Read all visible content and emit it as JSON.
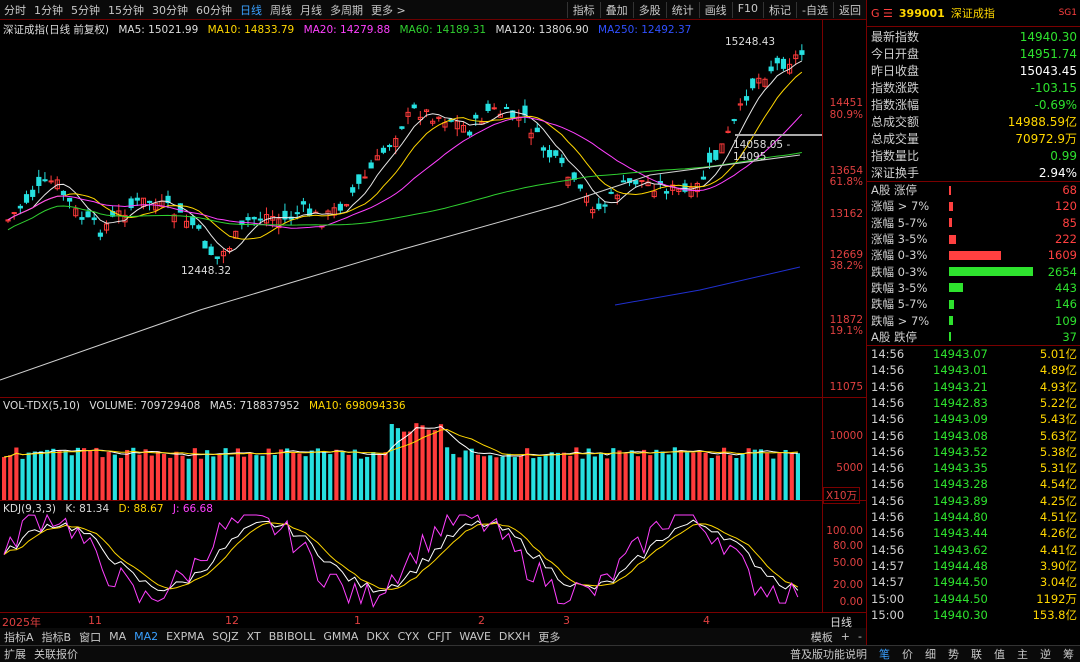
{
  "toolbar": {
    "periods": [
      "分时",
      "1分钟",
      "5分钟",
      "15分钟",
      "30分钟",
      "60分钟",
      "日线",
      "周线",
      "月线",
      "多周期",
      "更多 >"
    ],
    "active_period": "日线",
    "right": [
      "指标",
      "叠加",
      "多股",
      "统计",
      "画线",
      "F10",
      "标记",
      "-自选",
      "返回"
    ]
  },
  "main_legend": {
    "title": "深证成指(日线 前复权)",
    "ma5": "MA5: 15021.99",
    "ma10": "MA10: 14833.79",
    "ma20": "MA20: 14279.88",
    "ma60": "MA60: 14189.31",
    "ma120": "MA120: 13806.90",
    "ma250": "MA250: 12492.37"
  },
  "main_annotations": {
    "high": "15248.43",
    "low": "12448.32",
    "level": "14058.05 - 14095"
  },
  "y_axis": {
    "labels": [
      "14451",
      "80.9%",
      "13654",
      "61.8%",
      "13162",
      "12669",
      "38.2%",
      "11872",
      "19.1%",
      "11075"
    ]
  },
  "vol_legend": {
    "title": "VOL-TDX(5,10)",
    "volume": "VOLUME: 709729408",
    "ma5": "MA5: 718837952",
    "ma10": "MA10: 698094336"
  },
  "vol_axis": {
    "labels": [
      "10000",
      "5000"
    ],
    "unit": "X10万"
  },
  "kdj_legend": {
    "title": "KDJ(9,3,3)",
    "k": "K: 81.34",
    "d": "D: 88.67",
    "j": "J: 66.68"
  },
  "kdj_axis": {
    "labels": [
      "100.00",
      "80.00",
      "50.00",
      "20.00",
      "0.00"
    ]
  },
  "x_axis": {
    "labels": [
      "2025年",
      "11",
      "12",
      "1",
      "2",
      "3",
      "4"
    ],
    "period_label": "日线"
  },
  "bottom_tabs": [
    "指标A",
    "指标B",
    "窗口",
    "MA",
    "MA2",
    "EXPMA",
    "SQJZ",
    "XT",
    "BBIBOLL",
    "GMMA",
    "DKX",
    "CYX",
    "CFJT",
    "WAVE",
    "DKXH",
    "更多"
  ],
  "bottom_active": "MA2",
  "bottom_right": [
    "模板",
    "+",
    "-"
  ],
  "status_bar": {
    "left": [
      "扩展",
      "关联报价"
    ],
    "right": "普及版功能说明",
    "right_tabs": [
      "笔",
      "价",
      "细",
      "势",
      "联",
      "值",
      "主",
      "逆",
      "筹"
    ]
  },
  "quote": {
    "code": "399001",
    "name": "深证成指",
    "prefix": "G ☰",
    "tag": "SG1",
    "rows": [
      {
        "k": "最新指数",
        "v": "14940.30",
        "c": "grn"
      },
      {
        "k": "今日开盘",
        "v": "14951.74",
        "c": "grn"
      },
      {
        "k": "昨日收盘",
        "v": "15043.45",
        "c": "wht"
      },
      {
        "k": "指数涨跌",
        "v": "-103.15",
        "c": "grn"
      },
      {
        "k": "指数涨幅",
        "v": "-0.69%",
        "c": "grn"
      },
      {
        "k": "总成交额",
        "v": "14988.59亿",
        "c": "yel"
      },
      {
        "k": "总成交量",
        "v": "70972.9万",
        "c": "yel"
      },
      {
        "k": "指数量比",
        "v": "0.99",
        "c": "grn"
      },
      {
        "k": "深证换手",
        "v": "2.94%",
        "c": "wht"
      }
    ],
    "breadth": [
      {
        "k": "A股 涨停",
        "v": "68",
        "ratio": 0.026,
        "c": "red"
      },
      {
        "k": "涨幅 > 7%",
        "v": "120",
        "ratio": 0.046,
        "c": "red"
      },
      {
        "k": "涨幅 5-7%",
        "v": "85",
        "ratio": 0.033,
        "c": "red"
      },
      {
        "k": "涨幅 3-5%",
        "v": "222",
        "ratio": 0.085,
        "c": "red"
      },
      {
        "k": "涨幅 0-3%",
        "v": "1609",
        "ratio": 0.62,
        "c": "red"
      },
      {
        "k": "跌幅 0-3%",
        "v": "2654",
        "ratio": 1.0,
        "c": "grn"
      },
      {
        "k": "跌幅 3-5%",
        "v": "443",
        "ratio": 0.17,
        "c": "grn"
      },
      {
        "k": "跌幅 5-7%",
        "v": "146",
        "ratio": 0.056,
        "c": "grn"
      },
      {
        "k": "跌幅 > 7%",
        "v": "109",
        "ratio": 0.042,
        "c": "grn"
      },
      {
        "k": "A股 跌停",
        "v": "37",
        "ratio": 0.014,
        "c": "grn"
      }
    ],
    "ticks": [
      {
        "t": "14:56",
        "p": "14943.07",
        "v": "5.01亿"
      },
      {
        "t": "14:56",
        "p": "14943.01",
        "v": "4.89亿"
      },
      {
        "t": "14:56",
        "p": "14943.21",
        "v": "4.93亿"
      },
      {
        "t": "14:56",
        "p": "14942.83",
        "v": "5.22亿"
      },
      {
        "t": "14:56",
        "p": "14943.09",
        "v": "5.43亿"
      },
      {
        "t": "14:56",
        "p": "14943.08",
        "v": "5.63亿"
      },
      {
        "t": "14:56",
        "p": "14943.52",
        "v": "5.38亿"
      },
      {
        "t": "14:56",
        "p": "14943.35",
        "v": "5.31亿"
      },
      {
        "t": "14:56",
        "p": "14943.28",
        "v": "4.54亿"
      },
      {
        "t": "14:56",
        "p": "14943.89",
        "v": "4.25亿"
      },
      {
        "t": "14:56",
        "p": "14944.80",
        "v": "4.51亿"
      },
      {
        "t": "14:56",
        "p": "14943.44",
        "v": "4.26亿"
      },
      {
        "t": "14:56",
        "p": "14943.62",
        "v": "4.41亿"
      },
      {
        "t": "14:57",
        "p": "14944.48",
        "v": "3.90亿"
      },
      {
        "t": "14:57",
        "p": "14944.50",
        "v": "3.04亿"
      },
      {
        "t": "15:00",
        "p": "14944.50",
        "v": "1192万"
      },
      {
        "t": "15:00",
        "p": "14940.30",
        "v": "153.8亿"
      }
    ]
  }
}
